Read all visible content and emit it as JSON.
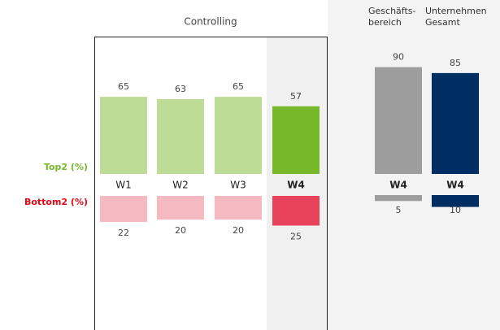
{
  "chart_data": {
    "type": "diverging-bar",
    "group_title": "Controlling",
    "categories": [
      "W1",
      "W2",
      "W3",
      "W4"
    ],
    "highlight": 3,
    "series": [
      {
        "name": "Top2 (%)",
        "label_color": "#76b82a",
        "color": "#bddc96",
        "highlight_color": "#76b82a",
        "values": [
          65,
          63,
          65,
          57
        ]
      },
      {
        "name": "Bottom2 (%)",
        "label_color": "#e30613",
        "color": "#f5b9c1",
        "highlight_color": "#e8435a",
        "values": [
          22,
          20,
          20,
          25
        ]
      }
    ],
    "comparisons": [
      {
        "title_lines": [
          "Geschäfts-",
          "bereich"
        ],
        "category": "W4",
        "color": "#9d9d9d",
        "top2": 90,
        "bottom2": 5
      },
      {
        "title_lines": [
          "Unternehmen",
          "Gesamt"
        ],
        "category": "W4",
        "color": "#002d62",
        "top2": 85,
        "bottom2": 10
      }
    ]
  }
}
